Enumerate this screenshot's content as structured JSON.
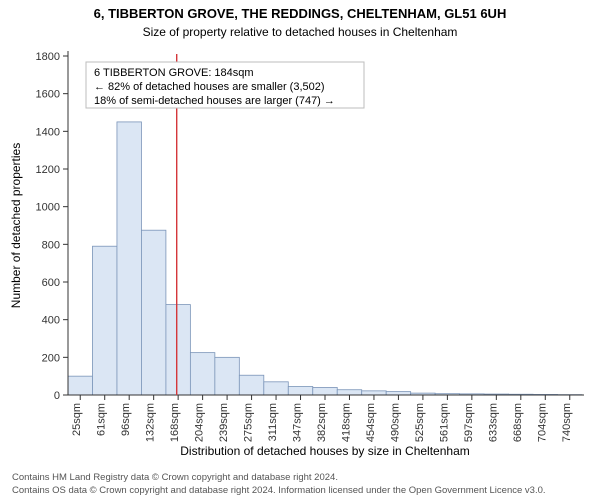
{
  "title": "6, TIBBERTON GROVE, THE REDDINGS, CHELTENHAM, GL51 6UH",
  "subtitle": "Size of property relative to detached houses in Cheltenham",
  "ylabel": "Number of detached properties",
  "xlabel": "Distribution of detached houses by size in Cheltenham",
  "footer_line1": "Contains HM Land Registry data © Crown copyright and database right 2024.",
  "footer_line2": "Contains OS data © Crown copyright and database right 2024. Information licensed under the Open Government Licence v3.0.",
  "annotation": {
    "line1": "6 TIBBERTON GROVE: 184sqm",
    "line2": "← 82% of detached houses are smaller (3,502)",
    "line3": "18% of semi-detached houses are larger (747) →"
  },
  "marker_x_value": 184,
  "marker_color": "#d4363a",
  "chart": {
    "type": "histogram",
    "x_start": 25,
    "x_step": 35.8,
    "categories": [
      "25sqm",
      "61sqm",
      "96sqm",
      "132sqm",
      "168sqm",
      "204sqm",
      "239sqm",
      "275sqm",
      "311sqm",
      "347sqm",
      "382sqm",
      "418sqm",
      "454sqm",
      "490sqm",
      "525sqm",
      "561sqm",
      "597sqm",
      "633sqm",
      "668sqm",
      "704sqm",
      "740sqm"
    ],
    "values": [
      100,
      790,
      1450,
      875,
      480,
      225,
      200,
      105,
      70,
      45,
      40,
      28,
      22,
      18,
      10,
      7,
      6,
      5,
      4,
      3,
      2
    ],
    "bar_fill": "#dbe6f4",
    "bar_stroke": "#7a94b8",
    "ylim": [
      0,
      1800
    ],
    "ytick_step": 200,
    "background_color": "#ffffff",
    "axis_color": "#333333"
  },
  "fonts": {
    "title_size": 13,
    "subtitle_size": 12,
    "label_size": 12,
    "tick_size": 11,
    "annot_size": 11,
    "footer_size": 9.5
  }
}
